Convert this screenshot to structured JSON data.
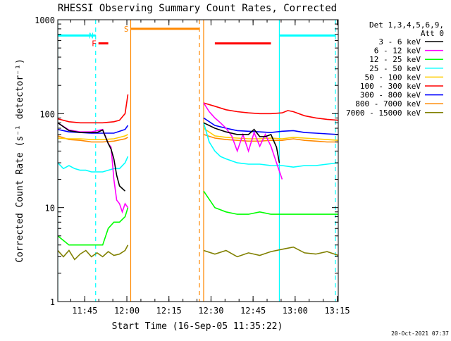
{
  "chart_data": {
    "type": "line",
    "title": "RHESSI Observing Summary Count Rates, Corrected",
    "xlabel": "Start Time (16-Sep-05 11:35:22)",
    "ylabel": "Corrected Count Rate (s⁻¹ detector⁻¹)",
    "x_unit": "minutes after 11:35:22",
    "xlim": [
      0,
      100
    ],
    "ylim": [
      1,
      1000
    ],
    "yscale": "log",
    "x_ticks": [
      {
        "label": "11:45",
        "x": 9.63
      },
      {
        "label": "12:00",
        "x": 24.63
      },
      {
        "label": "12:15",
        "x": 39.63
      },
      {
        "label": "12:30",
        "x": 54.63
      },
      {
        "label": "12:45",
        "x": 69.63
      },
      {
        "label": "13:00",
        "x": 84.63
      },
      {
        "label": "13:15",
        "x": 99.63
      }
    ],
    "y_ticks": [
      {
        "label": "1",
        "y": 1
      },
      {
        "label": "10",
        "y": 10
      },
      {
        "label": "100",
        "y": 100
      },
      {
        "label": "1000",
        "y": 1000
      }
    ],
    "legend_header": [
      "Det 1,3,4,5,6,9,",
      "Att 0"
    ],
    "legend_position": "top-right",
    "footer": "20-Oct-2021 07:37",
    "series": [
      {
        "name": "3 - 6 keV",
        "color": "#000000",
        "segments": [
          {
            "x": [
              0,
              4,
              8,
              12,
              14,
              16,
              18,
              19,
              20,
              21,
              22,
              24
            ],
            "y": [
              80,
              66,
              63,
              63,
              63,
              67,
              48,
              42,
              33,
              22,
              17,
              15
            ]
          },
          {
            "x": [
              52,
              56,
              60,
              64,
              68,
              70,
              72,
              74,
              76,
              78,
              79
            ],
            "y": [
              80,
              70,
              64,
              60,
              60,
              68,
              57,
              57,
              60,
              44,
              30
            ]
          }
        ]
      },
      {
        "name": "6 - 12 keV",
        "color": "#ff00ff",
        "segments": [
          {
            "x": [
              0,
              4,
              8,
              12,
              16,
              18,
              19,
              20,
              21,
              22,
              23,
              24,
              25
            ],
            "y": [
              80,
              67,
              64,
              64,
              68,
              48,
              44,
              20,
              12,
              11,
              9,
              11,
              10
            ]
          },
          {
            "x": [
              52,
              54,
              56,
              58,
              60,
              62,
              64,
              66,
              68,
              70,
              72,
              74,
              76,
              78,
              80
            ],
            "y": [
              130,
              105,
              90,
              80,
              70,
              58,
              40,
              60,
              40,
              63,
              45,
              60,
              45,
              30,
              20
            ]
          }
        ]
      },
      {
        "name": "12 - 25 keV",
        "color": "#00ff00",
        "segments": [
          {
            "x": [
              0,
              4,
              8,
              12,
              16,
              18,
              20,
              22,
              24,
              25
            ],
            "y": [
              5,
              4,
              4,
              4,
              4,
              6,
              7,
              7,
              8,
              10
            ]
          },
          {
            "x": [
              52,
              56,
              60,
              64,
              68,
              72,
              76,
              80,
              84,
              88,
              92,
              96,
              100
            ],
            "y": [
              15,
              10,
              9,
              8.5,
              8.5,
              9,
              8.5,
              8.5,
              8.5,
              8.5,
              8.5,
              8.5,
              8.5
            ]
          }
        ]
      },
      {
        "name": "25 - 50 keV",
        "color": "#00ffff",
        "segments": [
          {
            "x": [
              0,
              2,
              4,
              6,
              8,
              10,
              12,
              14,
              16,
              18,
              20,
              22,
              24,
              25
            ],
            "y": [
              30,
              26,
              28,
              26,
              25,
              25,
              24,
              24,
              24,
              25,
              26,
              26,
              30,
              35
            ]
          },
          {
            "x": [
              52,
              54,
              56,
              58,
              60,
              64,
              68,
              72,
              76,
              80,
              84,
              88,
              92,
              96,
              100
            ],
            "y": [
              80,
              50,
              40,
              35,
              33,
              30,
              29,
              29,
              28,
              28,
              27,
              28,
              28,
              29,
              30
            ]
          }
        ]
      },
      {
        "name": "50 - 100 keV",
        "color": "#ffcc00",
        "segments": [
          {
            "x": [
              0,
              4,
              8,
              12,
              16,
              20,
              24,
              25
            ],
            "y": [
              55,
              54,
              54,
              53,
              53,
              54,
              58,
              60
            ]
          },
          {
            "x": [
              52,
              56,
              60,
              64,
              68,
              72,
              76,
              80,
              84,
              88,
              92,
              96,
              100
            ],
            "y": [
              70,
              58,
              56,
              55,
              54,
              54,
              55,
              54,
              56,
              55,
              54,
              53,
              52
            ]
          }
        ]
      },
      {
        "name": "100 - 300 keV",
        "color": "#ff0000",
        "segments": [
          {
            "x": [
              0,
              4,
              8,
              12,
              16,
              20,
              22,
              24,
              25
            ],
            "y": [
              88,
              82,
              80,
              80,
              80,
              82,
              85,
              100,
              160
            ]
          },
          {
            "x": [
              52,
              56,
              60,
              64,
              68,
              72,
              76,
              80,
              82,
              84,
              88,
              92,
              96,
              100
            ],
            "y": [
              130,
              120,
              110,
              105,
              102,
              100,
              100,
              102,
              108,
              105,
              95,
              90,
              87,
              85
            ]
          }
        ]
      },
      {
        "name": "300 - 800 keV",
        "color": "#0000ff",
        "segments": [
          {
            "x": [
              0,
              4,
              8,
              12,
              16,
              20,
              24,
              25
            ],
            "y": [
              68,
              64,
              63,
              62,
              62,
              62,
              68,
              75
            ]
          },
          {
            "x": [
              52,
              56,
              60,
              64,
              68,
              72,
              76,
              80,
              84,
              88,
              92,
              96,
              100
            ],
            "y": [
              90,
              75,
              70,
              66,
              65,
              64,
              63,
              65,
              66,
              63,
              62,
              61,
              60
            ]
          }
        ]
      },
      {
        "name": "800 - 7000 keV",
        "color": "#ff8800",
        "segments": [
          {
            "x": [
              0,
              4,
              8,
              12,
              16,
              20,
              24,
              25
            ],
            "y": [
              58,
              53,
              52,
              50,
              50,
              51,
              54,
              56
            ]
          },
          {
            "x": [
              52,
              56,
              60,
              64,
              68,
              72,
              76,
              80,
              84,
              88,
              92,
              96,
              100
            ],
            "y": [
              60,
              55,
              53,
              52,
              51,
              51,
              52,
              52,
              54,
              52,
              51,
              50,
              50
            ]
          }
        ]
      },
      {
        "name": "7000 - 15000 keV",
        "color": "#808000",
        "segments": [
          {
            "x": [
              0,
              2,
              4,
              6,
              8,
              10,
              12,
              14,
              16,
              18,
              20,
              22,
              24,
              25
            ],
            "y": [
              3.5,
              3,
              3.5,
              2.8,
              3.2,
              3.5,
              3,
              3.3,
              3,
              3.4,
              3.1,
              3.2,
              3.5,
              4
            ]
          },
          {
            "x": [
              52,
              56,
              60,
              64,
              68,
              72,
              76,
              80,
              84,
              88,
              92,
              96,
              100
            ],
            "y": [
              3.5,
              3.2,
              3.5,
              3,
              3.3,
              3.1,
              3.4,
              3.6,
              3.8,
              3.3,
              3.2,
              3.4,
              3.1
            ]
          }
        ]
      }
    ],
    "flag_bars": [
      {
        "label": "",
        "color": "#00ffff",
        "x_start": 0,
        "x_end": 13.5,
        "y": 680
      },
      {
        "label": "N",
        "color": "#00ffff",
        "x_start": 13.5,
        "x_end": 13.5,
        "y": 680
      },
      {
        "label": "F",
        "color": "#ff0000",
        "x_start": 14.5,
        "x_end": 18,
        "y": 560
      },
      {
        "label": "S",
        "color": "#ff8800",
        "x_start": 26,
        "x_end": 50.5,
        "y": 800
      },
      {
        "label": "",
        "color": "#ff0000",
        "x_start": 56,
        "x_end": 76,
        "y": 560
      },
      {
        "label": "",
        "color": "#00ffff",
        "x_start": 79,
        "x_end": 99,
        "y": 680
      }
    ],
    "vertical_markers": [
      {
        "x": 0,
        "color": "#00ffff",
        "style": "solid"
      },
      {
        "x": 13.5,
        "color": "#00ffff",
        "style": "dashed"
      },
      {
        "x": 26,
        "color": "#ff8800",
        "style": "solid"
      },
      {
        "x": 50.5,
        "color": "#ff8800",
        "style": "dashed"
      },
      {
        "x": 52,
        "color": "#ff8800",
        "style": "solid"
      },
      {
        "x": 79,
        "color": "#00ffff",
        "style": "solid"
      },
      {
        "x": 99,
        "color": "#00ffff",
        "style": "dashed"
      }
    ]
  }
}
